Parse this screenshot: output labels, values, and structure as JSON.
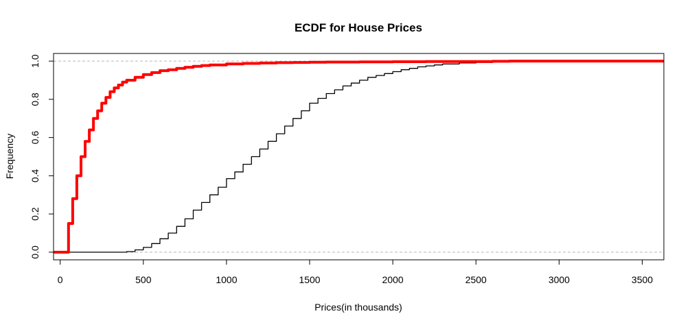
{
  "chart_data": {
    "type": "line",
    "title": "ECDF for House Prices",
    "xlabel": "Prices(in thousands)",
    "ylabel": "Frequency",
    "xlim": [
      -40,
      3630
    ],
    "ylim": [
      -0.04,
      1.04
    ],
    "x_ticks": [
      0,
      500,
      1000,
      1500,
      2000,
      2500,
      3000,
      3500
    ],
    "y_ticks": [
      0.0,
      0.2,
      0.4,
      0.6,
      0.8,
      1.0
    ],
    "y_tick_labels": [
      "0.0",
      "0.2",
      "0.4",
      "0.6",
      "0.8",
      "1.0"
    ],
    "reference_lines": [
      0,
      1
    ],
    "grid": false,
    "series": [
      {
        "color": "#000000",
        "style": "step",
        "x": [
          -40,
          380,
          400,
          450,
          500,
          550,
          600,
          650,
          700,
          750,
          800,
          850,
          900,
          950,
          1000,
          1050,
          1100,
          1150,
          1200,
          1250,
          1300,
          1350,
          1400,
          1450,
          1500,
          1550,
          1600,
          1650,
          1700,
          1750,
          1800,
          1850,
          1900,
          1950,
          2000,
          2050,
          2100,
          2150,
          2200,
          2250,
          2300,
          2400,
          2500,
          2600,
          2700,
          2800,
          3630
        ],
        "y": [
          0,
          0,
          0.003,
          0.012,
          0.025,
          0.045,
          0.07,
          0.1,
          0.135,
          0.175,
          0.22,
          0.26,
          0.3,
          0.34,
          0.385,
          0.42,
          0.46,
          0.5,
          0.54,
          0.58,
          0.62,
          0.66,
          0.7,
          0.74,
          0.78,
          0.805,
          0.83,
          0.85,
          0.87,
          0.885,
          0.9,
          0.915,
          0.925,
          0.935,
          0.945,
          0.955,
          0.962,
          0.97,
          0.975,
          0.98,
          0.985,
          0.99,
          0.993,
          0.996,
          0.998,
          1.0,
          1.0
        ]
      },
      {
        "color": "#ff0000",
        "style": "step",
        "x": [
          -40,
          30,
          50,
          75,
          100,
          125,
          150,
          175,
          200,
          225,
          250,
          275,
          300,
          325,
          350,
          375,
          400,
          450,
          500,
          550,
          600,
          650,
          700,
          750,
          800,
          850,
          900,
          1000,
          1100,
          1200,
          1300,
          1400,
          1500,
          1600,
          1800,
          2000,
          2200,
          2400,
          2600,
          2700,
          3000,
          3630
        ],
        "y": [
          0,
          0,
          0.15,
          0.28,
          0.4,
          0.5,
          0.58,
          0.64,
          0.7,
          0.74,
          0.78,
          0.81,
          0.84,
          0.86,
          0.875,
          0.89,
          0.9,
          0.915,
          0.93,
          0.94,
          0.95,
          0.955,
          0.962,
          0.968,
          0.973,
          0.977,
          0.98,
          0.985,
          0.988,
          0.99,
          0.992,
          0.993,
          0.994,
          0.995,
          0.996,
          0.997,
          0.998,
          0.998,
          0.999,
          1.0,
          1.0,
          1.0
        ]
      }
    ]
  }
}
